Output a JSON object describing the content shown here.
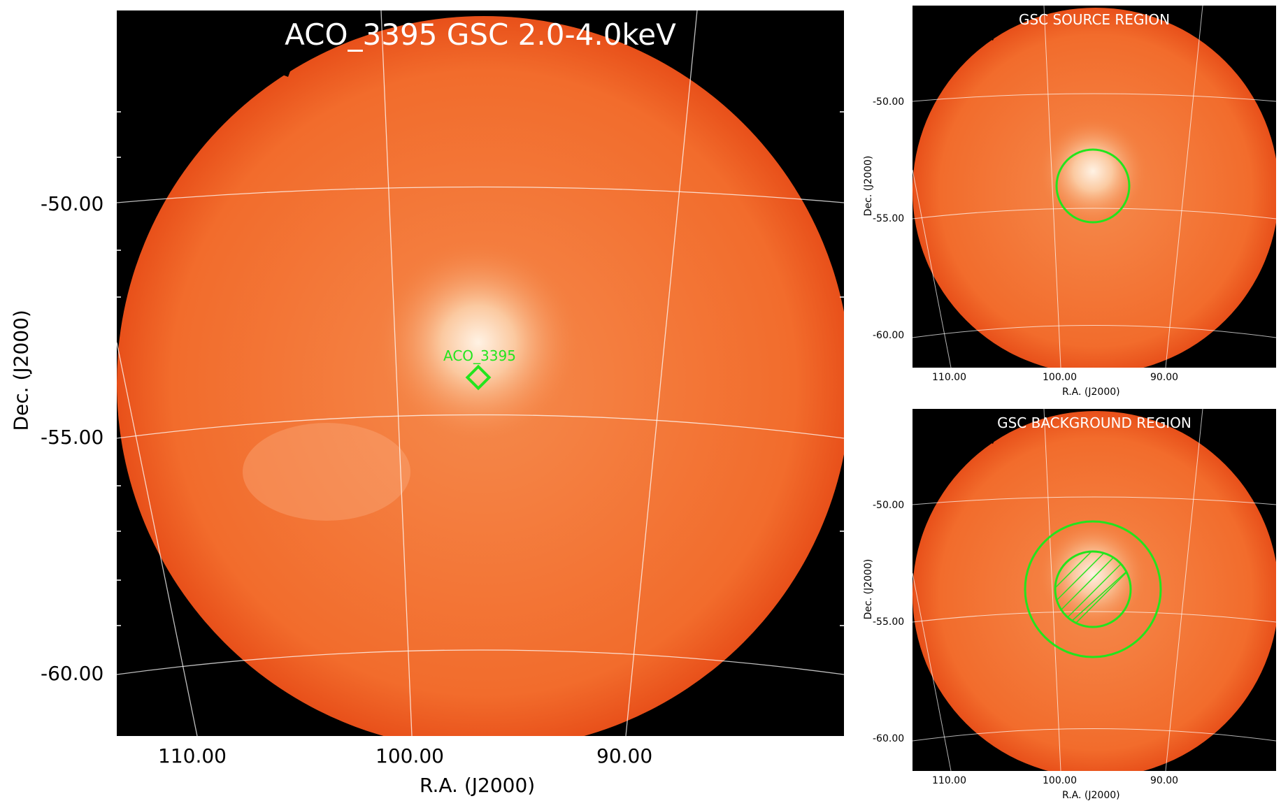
{
  "main": {
    "title": "ACO_3395 GSC 2.0-4.0keV",
    "source_label": "ACO_3395",
    "xlabel": "R.A. (J2000)",
    "ylabel": "Dec. (J2000)",
    "xticks": [
      "110.00",
      "100.00",
      "90.00"
    ],
    "yticks": [
      "-50.00",
      "-55.00",
      "-60.00"
    ]
  },
  "source_region": {
    "title": "GSC SOURCE REGION",
    "xlabel": "R.A. (J2000)",
    "ylabel": "Dec. (J2000)",
    "xticks": [
      "110.00",
      "100.00",
      "90.00"
    ],
    "yticks": [
      "-50.00",
      "-55.00",
      "-60.00"
    ]
  },
  "background_region": {
    "title": "GSC BACKGROUND REGION",
    "xlabel": "R.A. (J2000)",
    "ylabel": "Dec. (J2000)",
    "xticks": [
      "110.00",
      "100.00",
      "90.00"
    ],
    "yticks": [
      "-50.00",
      "-55.00",
      "-60.00"
    ]
  },
  "colors": {
    "background": "#000000",
    "field_outer": "#f05a14",
    "field_core": "#fff2e4",
    "region_marker": "#22e51d",
    "grid": "#ffffff"
  }
}
